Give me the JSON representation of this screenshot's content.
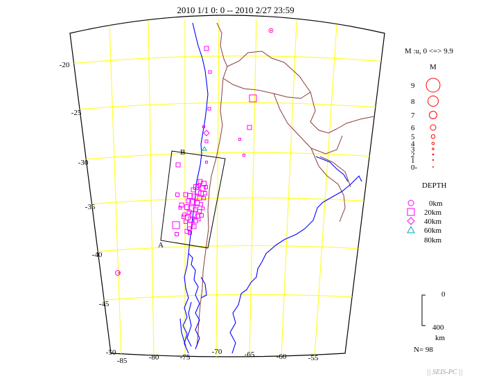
{
  "title": "2010 1/1 0: 0 -- 2010 2/27 23:59",
  "map": {
    "lat_labels": [
      "-20",
      "-25",
      "-30",
      "-35",
      "-40",
      "-45",
      "-50"
    ],
    "lon_labels": [
      "-85",
      "-80",
      "-75",
      "-70",
      "-65",
      "-60",
      "-55"
    ],
    "cross_section_labels": {
      "start": "A",
      "end": "B"
    },
    "colors": {
      "frame": "#000000",
      "grid": "#ffff00",
      "coastline": "#0000ff",
      "border": "#8b3a3a",
      "event": "#ff00ff",
      "deep_event": "#00aaaa"
    }
  },
  "legend": {
    "magnitude_range": "M :u, 0 <=> 9.9",
    "magnitude_header": "M",
    "magnitudes": [
      "9",
      "8",
      "7",
      "6",
      "5",
      "4",
      "3",
      "2",
      "1",
      "0-"
    ],
    "magnitude_color": "#ff0000",
    "depth_header": "DEPTH",
    "depths": [
      {
        "label": "0km",
        "symbol": "circle-icon"
      },
      {
        "label": "20km",
        "symbol": "square-icon"
      },
      {
        "label": "40km",
        "symbol": "diamond-icon"
      },
      {
        "label": "60km",
        "symbol": "triangle-icon"
      },
      {
        "label": "80km",
        "symbol": ""
      }
    ],
    "scale": {
      "top": "0",
      "bottom": "400",
      "unit": "km"
    },
    "count": "N= 98"
  },
  "credit": "|| SEIS-PC ||"
}
